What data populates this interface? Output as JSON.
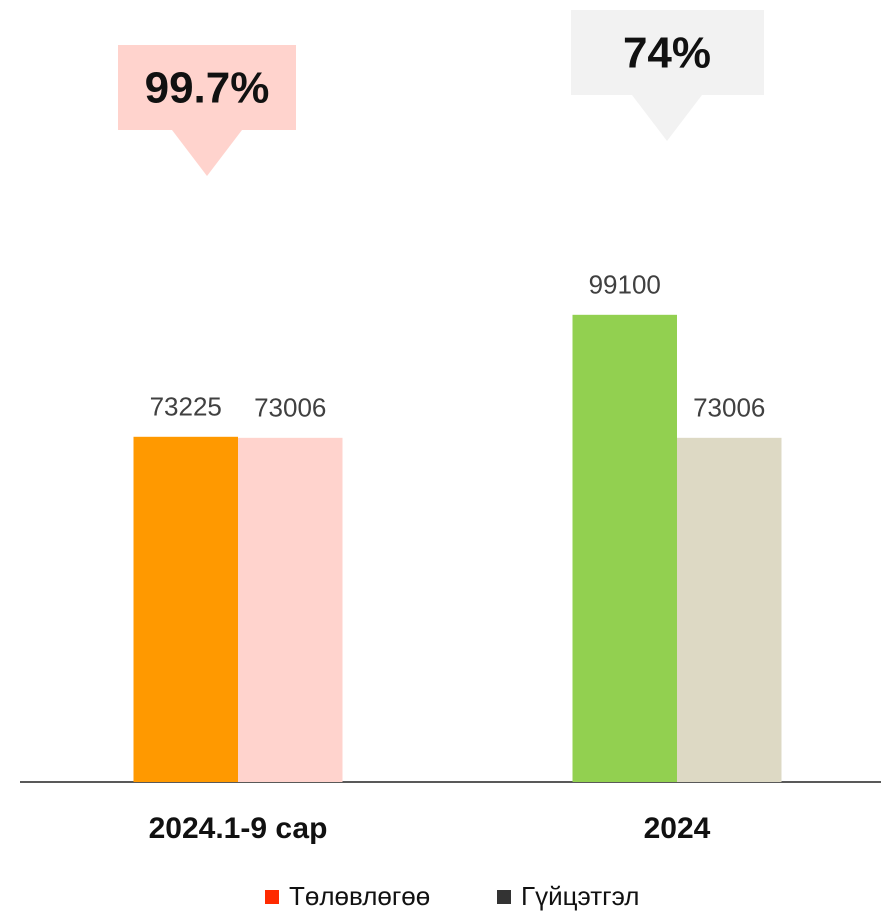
{
  "chart_data": {
    "type": "bar",
    "categories": [
      "2024.1-9 сар",
      "2024"
    ],
    "series": [
      {
        "name": "Төлөвлөгөө",
        "color": "#ff2a00",
        "colors": [
          "#ff9900",
          "#92d050"
        ],
        "values": [
          73225,
          99100
        ]
      },
      {
        "name": "Гүйцэтгэл",
        "color": "#333333",
        "colors": [
          "#ffd3cd",
          "#ddd9c4"
        ],
        "values": [
          73006,
          73006
        ]
      }
    ],
    "annotations": [
      "99.7%",
      "74%"
    ],
    "ylim": [
      0,
      105000
    ],
    "grid": false
  }
}
